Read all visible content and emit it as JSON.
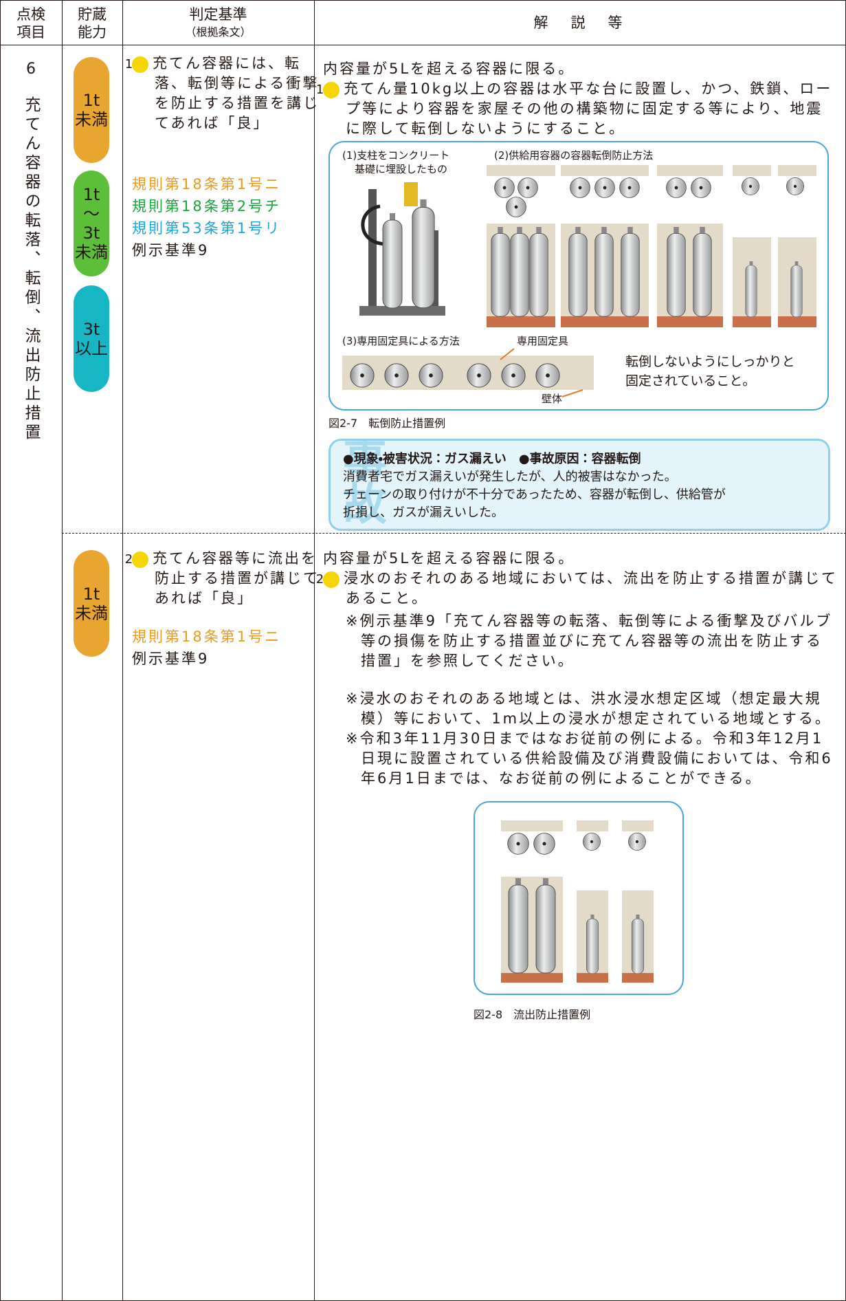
{
  "header": {
    "item": [
      "点検",
      "項目"
    ],
    "capacity": [
      "貯蔵",
      "能力"
    ],
    "criteria": {
      "title": "判定基準",
      "note": "（根拠条文）"
    },
    "commentary": "解　説　等"
  },
  "item": {
    "number": "6",
    "label": "充てん容器の転落、転倒、流出防止措置"
  },
  "rows": [
    {
      "badges": [
        [
          "1t",
          "未満"
        ],
        [
          "1t",
          "～",
          "3t",
          "未満"
        ],
        [
          "3t",
          "以上"
        ]
      ],
      "criteria": {
        "marker": "1",
        "text": "充てん容器には、転落、転倒等による衝撃を防止する措置を講じてあれば「良」",
        "refs": [
          "規則第18条第1号ニ",
          "規則第18条第2号チ",
          "規則第53条第1号リ",
          "例示基準9"
        ]
      },
      "commentary": {
        "intro": "内容量が5Lを超える容器に限る。",
        "marker": "1",
        "text": "充てん量10kg以上の容器は水平な台に設置し、かつ、鉄鎖、ロープ等により容器を家屋その他の構築物に固定する等により、地震に際して転倒しないようにすること。",
        "figure": {
          "label1": [
            "(1)支柱をコンクリート",
            "基礎に埋設したもの"
          ],
          "label2": "(2)供給用容器の容器転倒防止方法",
          "label3": "(3)専用固定具による方法",
          "fixture": "専用固定具",
          "wall": "壁体",
          "note": [
            "転倒しないようにしっかりと",
            "固定されていること。"
          ],
          "caption": "図2-7　転倒防止措置例"
        },
        "accident": {
          "watermark": "事故",
          "heading": "●現象・被害状況：ガス漏えい　●事故原因：容器転倒",
          "lines": [
            "消費者宅でガス漏えいが発生したが、人的被害はなかった。",
            "チェーンの取り付けが不十分であったため、容器が転倒し、供給管が",
            "折損し、ガスが漏えいした。"
          ]
        }
      }
    },
    {
      "badges": [
        [
          "1t",
          "未満"
        ]
      ],
      "criteria": {
        "marker": "2",
        "text": "充てん容器等に流出を防止する措置が講じてあれば「良」",
        "refs": [
          "規則第18条第1号ニ",
          "例示基準9"
        ]
      },
      "commentary": {
        "intro": "内容量が5Lを超える容器に限る。",
        "marker": "2",
        "text": "浸水のおそれのある地域においては、流出を防止する措置が講じてあること。",
        "notes": [
          "※例示基準9「充てん容器等の転落、転倒等による衝撃及びバルブ等の損傷を防止する措置並びに充てん容器等の流出を防止する措置」を参照してください。",
          "※浸水のおそれのある地域とは、洪水浸水想定区域（想定最大規模）等において、1m以上の浸水が想定されている地域とする。",
          "※令和3年11月30日まではなお従前の例による。令和3年12月1日現に設置されている供給設備及び消費設備においては、令和6年6月1日までは、なお従前の例によることができる。"
        ],
        "figure": {
          "caption": "図2-8　流出防止措置例"
        }
      }
    }
  ]
}
